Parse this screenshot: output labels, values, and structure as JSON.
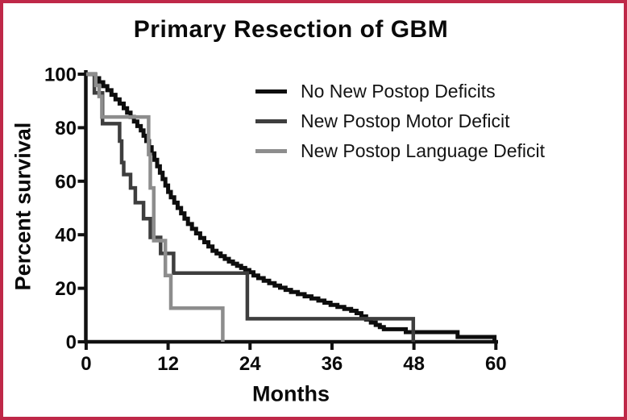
{
  "figure": {
    "border_color": "#bf2848",
    "background_color": "#ffffff"
  },
  "chart_data": {
    "type": "line",
    "variant": "kaplan_meier_step",
    "title": "Primary Resection of GBM",
    "xlabel": "Months",
    "ylabel": "Percent survival",
    "xlim": [
      0,
      60
    ],
    "ylim": [
      0,
      100
    ],
    "x_ticks": [
      0,
      12,
      24,
      36,
      48,
      60
    ],
    "y_ticks": [
      0,
      20,
      40,
      60,
      80,
      100
    ],
    "grid": false,
    "legend_position": "inside top-right",
    "axis_color": "#111111",
    "series": [
      {
        "name": "No New Postop Deficits",
        "color": "#0d0d0d",
        "line_width": 5,
        "points": [
          [
            0,
            100
          ],
          [
            1.3,
            98.5
          ],
          [
            1.9,
            97
          ],
          [
            2.5,
            95.5
          ],
          [
            3.1,
            94
          ],
          [
            3.7,
            92.3
          ],
          [
            4.3,
            90.6
          ],
          [
            4.9,
            89
          ],
          [
            5.5,
            87.3
          ],
          [
            6.0,
            85.6
          ],
          [
            6.5,
            84
          ],
          [
            7.0,
            82.3
          ],
          [
            7.5,
            80.6
          ],
          [
            8.0,
            79
          ],
          [
            8.4,
            77
          ],
          [
            8.8,
            75
          ],
          [
            9.2,
            72.7
          ],
          [
            9.6,
            70.4
          ],
          [
            10.0,
            68
          ],
          [
            10.4,
            65.6
          ],
          [
            10.8,
            63.2
          ],
          [
            11.2,
            60.8
          ],
          [
            11.6,
            58.4
          ],
          [
            12.0,
            56
          ],
          [
            12.4,
            54
          ],
          [
            12.9,
            52
          ],
          [
            13.4,
            50
          ],
          [
            13.9,
            48
          ],
          [
            14.4,
            46
          ],
          [
            14.9,
            44
          ],
          [
            15.5,
            42.2
          ],
          [
            16.1,
            40.5
          ],
          [
            16.7,
            38.8
          ],
          [
            17.3,
            37.2
          ],
          [
            17.9,
            35.6
          ],
          [
            18.5,
            34
          ],
          [
            19.1,
            33
          ],
          [
            19.7,
            32
          ],
          [
            20.3,
            31
          ],
          [
            20.9,
            30
          ],
          [
            21.5,
            29.2
          ],
          [
            22.1,
            28.4
          ],
          [
            22.7,
            27.6
          ],
          [
            23.3,
            26.8
          ],
          [
            23.9,
            26
          ],
          [
            24.5,
            24.8
          ],
          [
            25.2,
            23.8
          ],
          [
            26.0,
            22.8
          ],
          [
            26.8,
            21.9
          ],
          [
            27.6,
            21
          ],
          [
            28.4,
            20.2
          ],
          [
            29.2,
            19.4
          ],
          [
            30.0,
            18.6
          ],
          [
            31.0,
            17.8
          ],
          [
            32.0,
            17
          ],
          [
            33.0,
            16.2
          ],
          [
            34.0,
            15.4
          ],
          [
            34.9,
            14.6
          ],
          [
            35.8,
            13.8
          ],
          [
            36.8,
            13
          ],
          [
            37.8,
            12.3
          ],
          [
            38.8,
            11.6
          ],
          [
            39.6,
            10.7
          ],
          [
            40.3,
            9.5
          ],
          [
            41.0,
            8.3
          ],
          [
            41.7,
            7.2
          ],
          [
            42.4,
            6.3
          ],
          [
            43.0,
            5.5
          ],
          [
            43.6,
            4.7
          ],
          [
            46.8,
            3.6
          ],
          [
            54.4,
            1.8
          ],
          [
            59.8,
            0
          ]
        ]
      },
      {
        "name": "New Postop Motor Deficit",
        "color": "#3e3e3e",
        "line_width": 4.5,
        "points": [
          [
            0,
            100
          ],
          [
            1.2,
            93
          ],
          [
            2.4,
            81.5
          ],
          [
            4.9,
            75
          ],
          [
            5.2,
            67
          ],
          [
            5.5,
            62.5
          ],
          [
            6.5,
            57.5
          ],
          [
            7.2,
            52
          ],
          [
            8.4,
            46
          ],
          [
            9.4,
            39
          ],
          [
            10.9,
            33
          ],
          [
            12.8,
            25.7
          ],
          [
            23.6,
            8.6
          ],
          [
            47.9,
            0
          ]
        ]
      },
      {
        "name": "New Postop Language Deficit",
        "color": "#8d8d8d",
        "line_width": 4.5,
        "points": [
          [
            0,
            100
          ],
          [
            1.4,
            95.8
          ],
          [
            1.9,
            91.7
          ],
          [
            2.3,
            84
          ],
          [
            9.15,
            70
          ],
          [
            9.4,
            57.5
          ],
          [
            9.9,
            37.8
          ],
          [
            11.6,
            24.8
          ],
          [
            12.4,
            12.6
          ],
          [
            20,
            0
          ]
        ]
      }
    ]
  }
}
